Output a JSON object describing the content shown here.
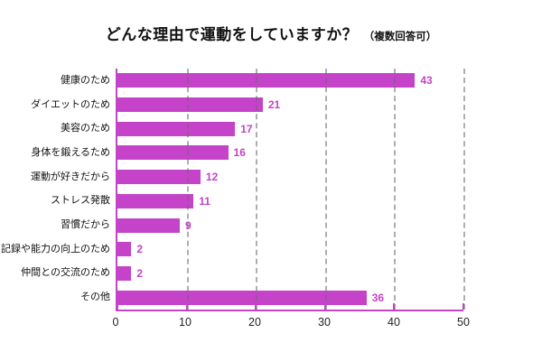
{
  "title": {
    "main": "どんな理由で運動をしていますか？",
    "note": "（複数回答可）"
  },
  "colors": {
    "bar": "#c443c8",
    "value_label": "#c443c8",
    "axis": "#c443c8",
    "gridline": "#6c6c6c",
    "text": "#111111",
    "background": "#ffffff"
  },
  "chart_data": {
    "type": "bar",
    "orientation": "horizontal",
    "title": "どんな理由で運動をしていますか？",
    "subtitle": "（複数回答可）",
    "categories": [
      "健康のため",
      "ダイエットのため",
      "美容のため",
      "身体を鍛えるため",
      "運動が好きだから",
      "ストレス発散",
      "習慣だから",
      "記録や能力の向上のため",
      "仲間との交流のため",
      "その他"
    ],
    "values": [
      43,
      21,
      17,
      16,
      12,
      11,
      9,
      2,
      2,
      36
    ],
    "xlabel": "",
    "ylabel": "",
    "xlim": [
      0,
      50
    ],
    "xticks": [
      0,
      10,
      20,
      30,
      40,
      50
    ],
    "grid": true,
    "gridline_style": "dashed",
    "legend": "none",
    "value_labels_shown": true
  }
}
